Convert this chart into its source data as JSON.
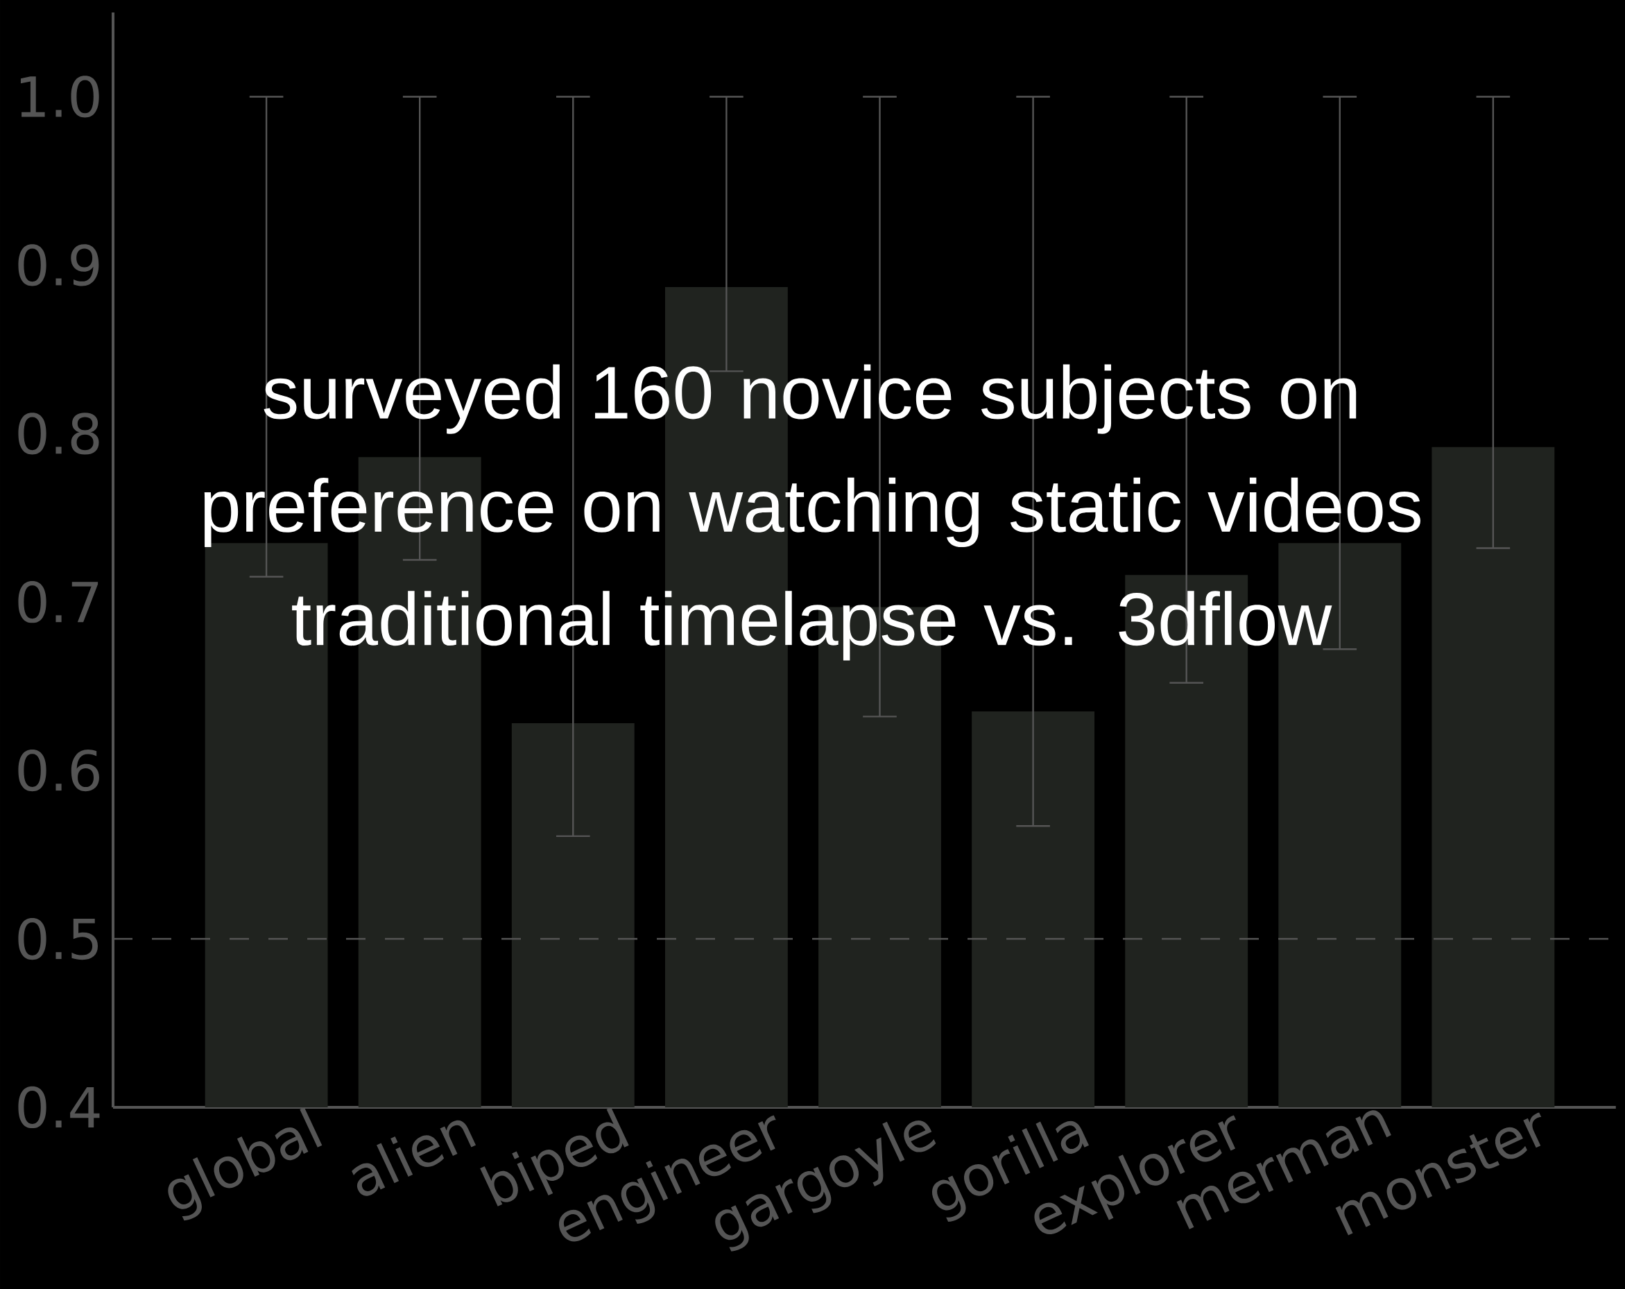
{
  "chart_data": {
    "type": "bar",
    "categories": [
      "global",
      "alien",
      "biped",
      "engineer",
      "gargoyle",
      "gorilla",
      "explorer",
      "merman",
      "monster"
    ],
    "values": [
      0.735,
      0.786,
      0.628,
      0.887,
      0.697,
      0.635,
      0.716,
      0.735,
      0.792
    ],
    "errors": [
      [
        0.715,
        1.0
      ],
      [
        0.725,
        1.0
      ],
      [
        0.561,
        1.0
      ],
      [
        0.837,
        1.0
      ],
      [
        0.632,
        1.0
      ],
      [
        0.567,
        1.0
      ],
      [
        0.652,
        1.0
      ],
      [
        0.672,
        1.0
      ],
      [
        0.732,
        1.0
      ]
    ],
    "color": "#20231f",
    "ylim": [
      0.4,
      1.05
    ],
    "yticks": [
      0.4,
      0.5,
      0.6,
      0.7,
      0.8,
      0.9,
      {
        "value": 1.0,
        "label": "1.0"
      }
    ],
    "ref_lines": [
      {
        "axis": "y",
        "value": 0.5,
        "line_style": "dashed",
        "color": "#555555"
      }
    ],
    "grid": false,
    "annotations": [
      "surveyed 160 novice subjects on preference on watching static videos traditional timelapse vs. 3dflow"
    ]
  }
}
